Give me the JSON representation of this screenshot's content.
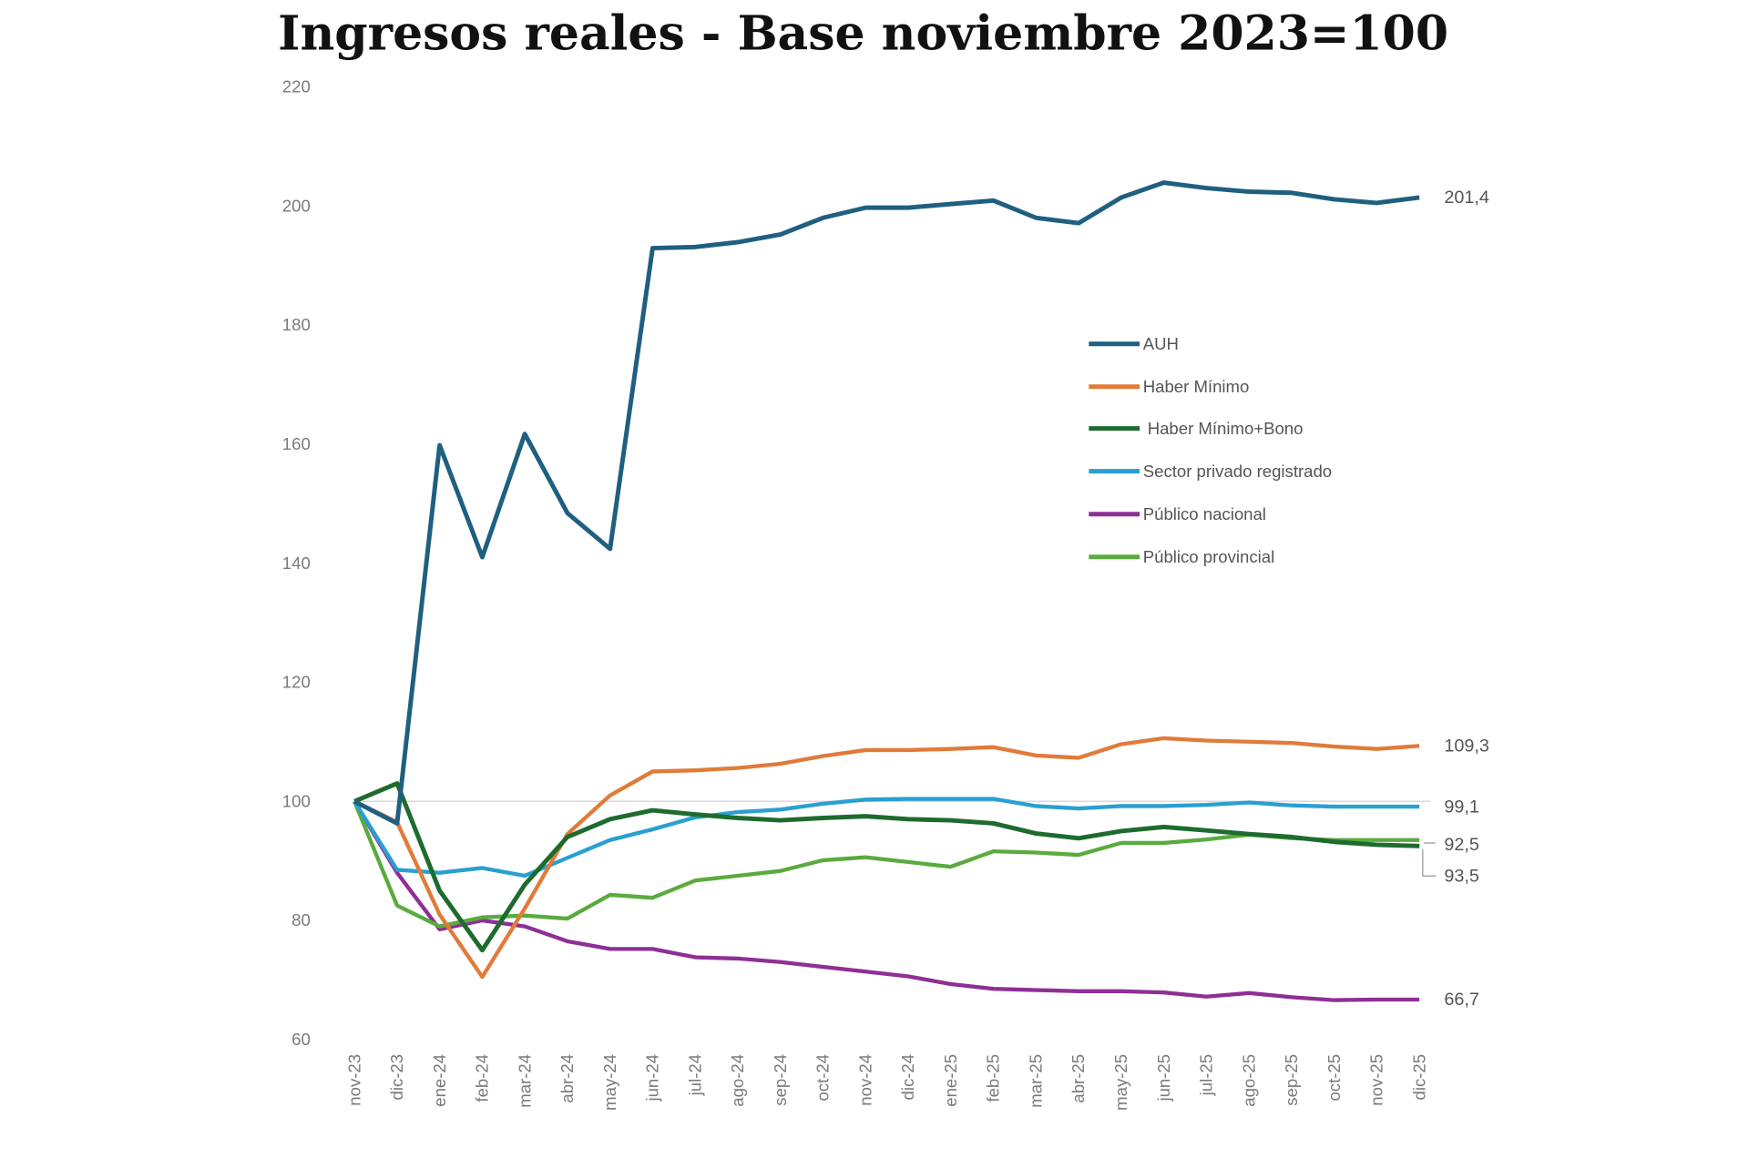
{
  "chart_data": {
    "type": "line",
    "title": "Ingresos reales - Base noviembre 2023=100",
    "xlabel": "",
    "ylabel": "",
    "ylim": [
      60,
      220
    ],
    "yticks": [
      60,
      80,
      100,
      120,
      140,
      160,
      180,
      200,
      220
    ],
    "grid": false,
    "reference_line": 100,
    "legend_placement": "right-center",
    "categories": [
      "nov-23",
      "dic-23",
      "ene-24",
      "feb-24",
      "mar-24",
      "abr-24",
      "may-24",
      "jun-24",
      "jul-24",
      "ago-24",
      "sep-24",
      "oct-24",
      "nov-24",
      "dic-24",
      "ene-25",
      "feb-25",
      "mar-25",
      "abr-25",
      "may-25",
      "jun-25",
      "jul-25",
      "ago-25",
      "sep-25",
      "oct-25",
      "nov-25",
      "dic-25"
    ],
    "series": [
      {
        "name": "AUH",
        "color": "#1f5f80",
        "end_label": "201,4",
        "values": [
          100,
          96.3,
          159.8,
          141,
          161.7,
          148.4,
          142.4,
          192.9,
          193.1,
          193.9,
          195.2,
          198,
          199.7,
          199.7,
          200.3,
          200.9,
          198,
          197.1,
          201.4,
          203.9,
          203,
          202.4,
          202.2,
          201.1,
          200.5,
          201.4
        ]
      },
      {
        "name": "Haber Mínimo",
        "color": "#e07b39",
        "end_label": "109,3",
        "values": [
          100,
          96.5,
          81,
          70.5,
          82,
          94.5,
          101,
          105,
          105.2,
          105.6,
          106.3,
          107.6,
          108.6,
          108.6,
          108.8,
          109.1,
          107.7,
          107.3,
          109.6,
          110.6,
          110.2,
          110,
          109.8,
          109.2,
          108.8,
          109.3
        ]
      },
      {
        "name": "Haber Mínimo+Bono",
        "color": "#1e6b2e",
        "end_label": "92,5",
        "values": [
          100,
          103,
          85,
          75,
          86,
          94,
          97,
          98.5,
          97.8,
          97.2,
          96.8,
          97.2,
          97.5,
          97,
          96.8,
          96.3,
          94.6,
          93.8,
          95,
          95.7,
          95.1,
          94.5,
          94,
          93.2,
          92.7,
          92.5
        ]
      },
      {
        "name": "Sector privado registrado",
        "color": "#2a9fd1",
        "end_label": "99,1",
        "values": [
          100,
          88.5,
          88,
          88.8,
          87.5,
          90.5,
          93.5,
          95.3,
          97.3,
          98.2,
          98.6,
          99.6,
          100.3,
          100.4,
          100.4,
          100.4,
          99.2,
          98.8,
          99.2,
          99.2,
          99.4,
          99.8,
          99.3,
          99.1,
          99.1,
          99.1
        ]
      },
      {
        "name": "Público nacional",
        "color": "#8e2f96",
        "end_label": "66,7",
        "values": [
          100,
          88,
          78.5,
          80,
          79,
          76.5,
          75.2,
          75.2,
          73.8,
          73.6,
          73,
          72.2,
          71.4,
          70.6,
          69.3,
          68.5,
          68.3,
          68.1,
          68.1,
          67.9,
          67.2,
          67.8,
          67.1,
          66.6,
          66.7,
          66.7
        ]
      },
      {
        "name": "Público provincial",
        "color": "#5aab3e",
        "end_label": "93,5",
        "values": [
          100,
          82.5,
          79,
          80.5,
          80.8,
          80.3,
          84.3,
          83.8,
          86.7,
          87.5,
          88.3,
          90.1,
          90.6,
          89.8,
          89,
          91.6,
          91.4,
          91,
          93,
          93,
          93.6,
          94.4,
          93.8,
          93.5,
          93.5,
          93.5
        ]
      }
    ]
  }
}
